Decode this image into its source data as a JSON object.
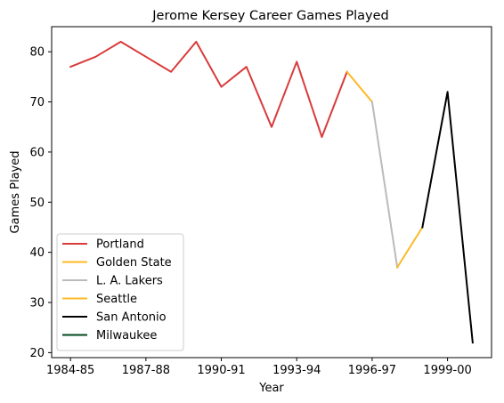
{
  "chart_data": {
    "type": "line",
    "title": "Jerome Kersey Career Games Played",
    "xlabel": "Year",
    "ylabel": "Games Played",
    "x_tick_labels": [
      "1984-85",
      "1987-88",
      "1990-91",
      "1993-94",
      "1996-97",
      "1999-00"
    ],
    "x_tick_indices": [
      0,
      3,
      6,
      9,
      12,
      15
    ],
    "y_ticks": [
      20,
      30,
      40,
      50,
      60,
      70,
      80
    ],
    "xlim": [
      -0.75,
      16.75
    ],
    "ylim": [
      19,
      85
    ],
    "grid": false,
    "legend_position": "lower-left",
    "series": [
      {
        "name": "Portland",
        "color": "#d93b3b",
        "points": [
          [
            0,
            77
          ],
          [
            1,
            79
          ],
          [
            2,
            82
          ],
          [
            3,
            79
          ],
          [
            4,
            76
          ],
          [
            5,
            82
          ],
          [
            6,
            73
          ],
          [
            7,
            77
          ],
          [
            8,
            65
          ],
          [
            9,
            78
          ],
          [
            10,
            63
          ],
          [
            11,
            76
          ]
        ]
      },
      {
        "name": "Golden State",
        "color": "#fdb927",
        "points": [
          [
            11,
            76
          ],
          [
            12,
            70
          ]
        ]
      },
      {
        "name": "L. A. Lakers",
        "color": "#bbbbbb",
        "points": [
          [
            12,
            70
          ],
          [
            13,
            37
          ]
        ]
      },
      {
        "name": "Seattle",
        "color": "#fdb927",
        "points": [
          [
            13,
            37
          ],
          [
            14,
            45
          ]
        ]
      },
      {
        "name": "San Antonio",
        "color": "#000000",
        "points": [
          [
            14,
            45
          ],
          [
            15,
            72
          ],
          [
            16,
            22
          ]
        ]
      },
      {
        "name": "Milwaukee",
        "color": "#00471b",
        "points": []
      }
    ]
  }
}
